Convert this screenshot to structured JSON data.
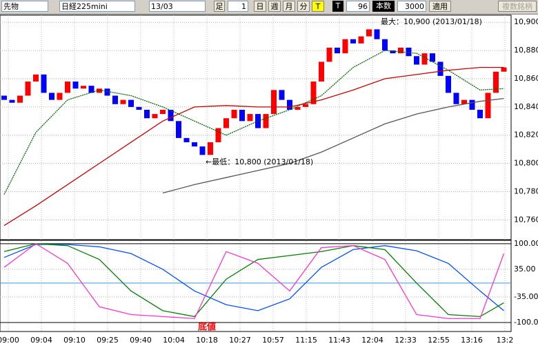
{
  "toolbar": {
    "market": "先物",
    "symbol": "日経225mini",
    "contract": "13/03",
    "bar_label": "足",
    "bar_count": "1",
    "periods": [
      "日",
      "週",
      "月",
      "分",
      "T"
    ],
    "t_label": "T",
    "t_value": "96",
    "count_label": "本数",
    "count_value": "3000",
    "apply": "適用",
    "multi": "複数銘柄"
  },
  "chart_data": [
    {
      "type": "candlestick",
      "x_labels": [
        "09:00",
        "09:04",
        "09:10",
        "09:25",
        "09:40",
        "10:04",
        "10:18",
        "10:27",
        "10:57",
        "11:15",
        "11:43",
        "12:04",
        "12:33",
        "12:55",
        "13:16",
        "13:2"
      ],
      "open": [
        10848,
        10845,
        10843,
        10848,
        10858,
        10863,
        10850,
        10845,
        10850,
        10858,
        10853,
        10855,
        10850,
        10853,
        10848,
        10842,
        10845,
        10840,
        10838,
        10832,
        10835,
        10838,
        10830,
        10818,
        10815,
        10812,
        10806,
        10815,
        10825,
        10832,
        10838,
        10830,
        10835,
        10825,
        10835,
        10852,
        10845,
        10838,
        10840,
        10842,
        10858,
        10872,
        10882,
        10878,
        10888,
        10885,
        10890,
        10895,
        10888,
        10880,
        10878,
        10882,
        10876,
        10870,
        10878,
        10872,
        10862,
        10850,
        10842,
        10845,
        10838,
        10832,
        10850,
        10865
      ],
      "close": [
        10845,
        10843,
        10848,
        10858,
        10863,
        10850,
        10845,
        10850,
        10858,
        10853,
        10855,
        10850,
        10853,
        10848,
        10842,
        10845,
        10840,
        10838,
        10832,
        10835,
        10838,
        10830,
        10818,
        10815,
        10812,
        10806,
        10815,
        10825,
        10832,
        10838,
        10830,
        10835,
        10825,
        10835,
        10852,
        10845,
        10838,
        10840,
        10842,
        10858,
        10872,
        10882,
        10878,
        10888,
        10885,
        10890,
        10895,
        10888,
        10880,
        10878,
        10882,
        10876,
        10870,
        10878,
        10872,
        10862,
        10850,
        10842,
        10845,
        10838,
        10832,
        10850,
        10865,
        10868
      ],
      "up_color": "#ff0000",
      "down_color": "#0000ff",
      "ma_index": [
        0,
        4,
        8,
        12,
        16,
        20,
        24,
        28,
        32,
        36,
        40,
        44,
        48,
        52,
        56,
        60,
        63
      ],
      "series": [
        {
          "color": "#006400",
          "dashed": true,
          "values": [
            10778,
            10822,
            10845,
            10852,
            10848,
            10840,
            10830,
            10820,
            10830,
            10838,
            10848,
            10868,
            10880,
            10878,
            10866,
            10852,
            10853
          ]
        },
        {
          "color": "#cc0000",
          "values": [
            10756,
            10770,
            10785,
            10800,
            10815,
            10830,
            10840,
            10841,
            10840,
            10840,
            10845,
            10852,
            10860,
            10863,
            10866,
            10868,
            10868
          ]
        },
        {
          "color": "#555555",
          "values": [
            null,
            null,
            null,
            null,
            null,
            10779,
            10785,
            10790,
            10795,
            10800,
            10808,
            10818,
            10828,
            10835,
            10840,
            10844,
            10846
          ]
        }
      ],
      "ylim": [
        10746,
        10905
      ],
      "yticks": [
        {
          "value": 10760,
          "label": "10,760"
        },
        {
          "value": 10780,
          "label": "10,780"
        },
        {
          "value": 10800,
          "label": "10,800"
        },
        {
          "value": 10820,
          "label": "10,820"
        },
        {
          "value": 10840,
          "label": "10,840"
        },
        {
          "value": 10860,
          "label": "10,860"
        },
        {
          "value": 10880,
          "label": "10,880"
        },
        {
          "value": 10900,
          "label": "10,900"
        }
      ],
      "grid": true,
      "annotations": [
        "最大：10,900 (2013/01/18)",
        "←最低：10,800 (2013/01/18)"
      ]
    },
    {
      "type": "line",
      "ma_index": [
        0,
        4,
        8,
        12,
        16,
        20,
        24,
        28,
        32,
        36,
        40,
        44,
        48,
        52,
        56,
        60,
        63
      ],
      "series": [
        {
          "color": "#0050ff",
          "values": [
            65,
            98,
            98,
            92,
            75,
            35,
            -20,
            -55,
            -70,
            -40,
            40,
            85,
            95,
            82,
            50,
            -20,
            -70
          ]
        },
        {
          "color": "#008000",
          "values": [
            80,
            100,
            95,
            60,
            -20,
            -70,
            -85,
            10,
            60,
            70,
            80,
            95,
            85,
            0,
            -80,
            -85,
            -50
          ]
        },
        {
          "color": "#ff33cc",
          "values": [
            40,
            100,
            50,
            -60,
            -80,
            -85,
            -90,
            80,
            50,
            -20,
            90,
            95,
            60,
            -80,
            -90,
            -90,
            75
          ]
        }
      ],
      "ylim": [
        -122,
        105
      ],
      "yticks": [
        {
          "value": 100,
          "label": "100.00"
        },
        {
          "value": 35,
          "label": "35.00"
        },
        {
          "value": -35,
          "label": "-35.00"
        },
        {
          "value": -100,
          "label": "-100.0"
        }
      ],
      "annotation": "底値"
    }
  ]
}
